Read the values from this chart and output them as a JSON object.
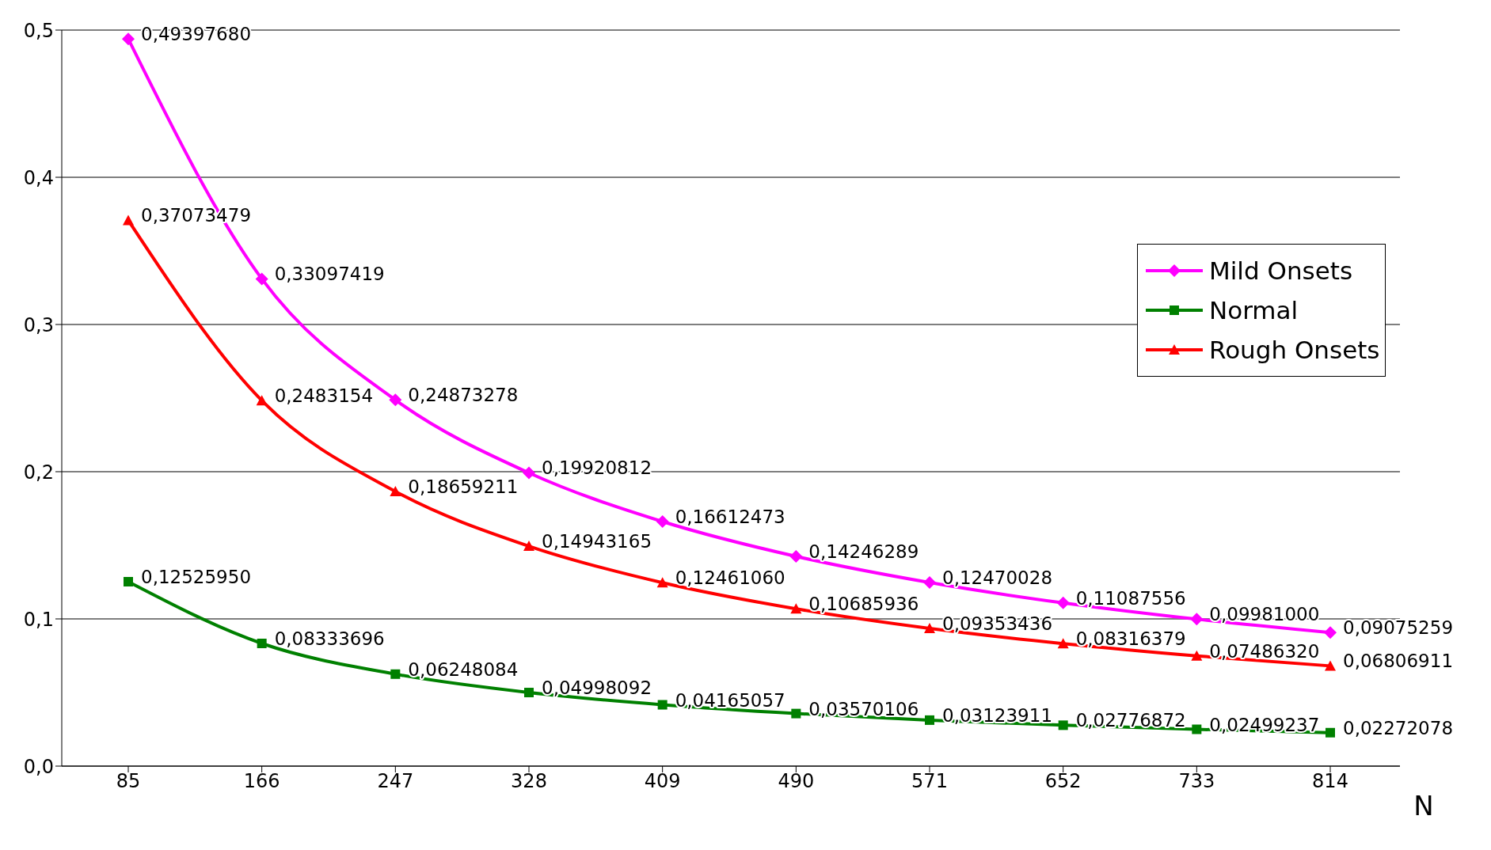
{
  "chart_data": {
    "type": "line",
    "xlabel": "N",
    "categories": [
      "85",
      "166",
      "247",
      "328",
      "409",
      "490",
      "571",
      "652",
      "733",
      "814"
    ],
    "series": [
      {
        "name": "Mild Onsets",
        "color": "#ff00ff",
        "marker": "diamond",
        "values": [
          0.4939768,
          0.33097419,
          0.24873278,
          0.19920812,
          0.16612473,
          0.14246289,
          0.12470028,
          0.11087556,
          0.09981,
          0.09075259
        ],
        "value_labels": [
          "0,49397680",
          "0,33097419",
          "0,24873278",
          "0,19920812",
          "0,16612473",
          "0,14246289",
          "0,12470028",
          "0,11087556",
          "0,09981000",
          "0,09075259"
        ]
      },
      {
        "name": "Normal",
        "color": "#008000",
        "marker": "square",
        "values": [
          0.1252595,
          0.08333696,
          0.06248084,
          0.04998092,
          0.04165057,
          0.03570106,
          0.03123911,
          0.02776872,
          0.02499237,
          0.02272078
        ],
        "value_labels": [
          "0,12525950",
          "0,08333696",
          "0,06248084",
          "0,04998092",
          "0,04165057",
          "0,03570106",
          "0,03123911",
          "0,02776872",
          "0,02499237",
          "0,02272078"
        ]
      },
      {
        "name": "Rough Onsets",
        "color": "#ff0000",
        "marker": "triangle",
        "values": [
          0.37073479,
          0.2483154,
          0.18659211,
          0.14943165,
          0.1246106,
          0.10685936,
          0.09353436,
          0.08316379,
          0.0748632,
          0.06806911
        ],
        "value_labels": [
          "0,37073479",
          "0,2483154",
          "0,18659211",
          "0,14943165",
          "0,12461060",
          "0,10685936",
          "0,09353436",
          "0,08316379",
          "0,07486320",
          "0,06806911"
        ]
      }
    ],
    "ylim": [
      0,
      0.5
    ],
    "yticks": [
      {
        "value": 0,
        "label": "0,0"
      },
      {
        "value": 0.1,
        "label": "0,1"
      },
      {
        "value": 0.2,
        "label": "0,2"
      },
      {
        "value": 0.3,
        "label": "0,3"
      },
      {
        "value": 0.4,
        "label": "0,4"
      },
      {
        "value": 0.5,
        "label": "0,5"
      }
    ],
    "grid": "y",
    "legend": "right",
    "line_style": "solid"
  }
}
